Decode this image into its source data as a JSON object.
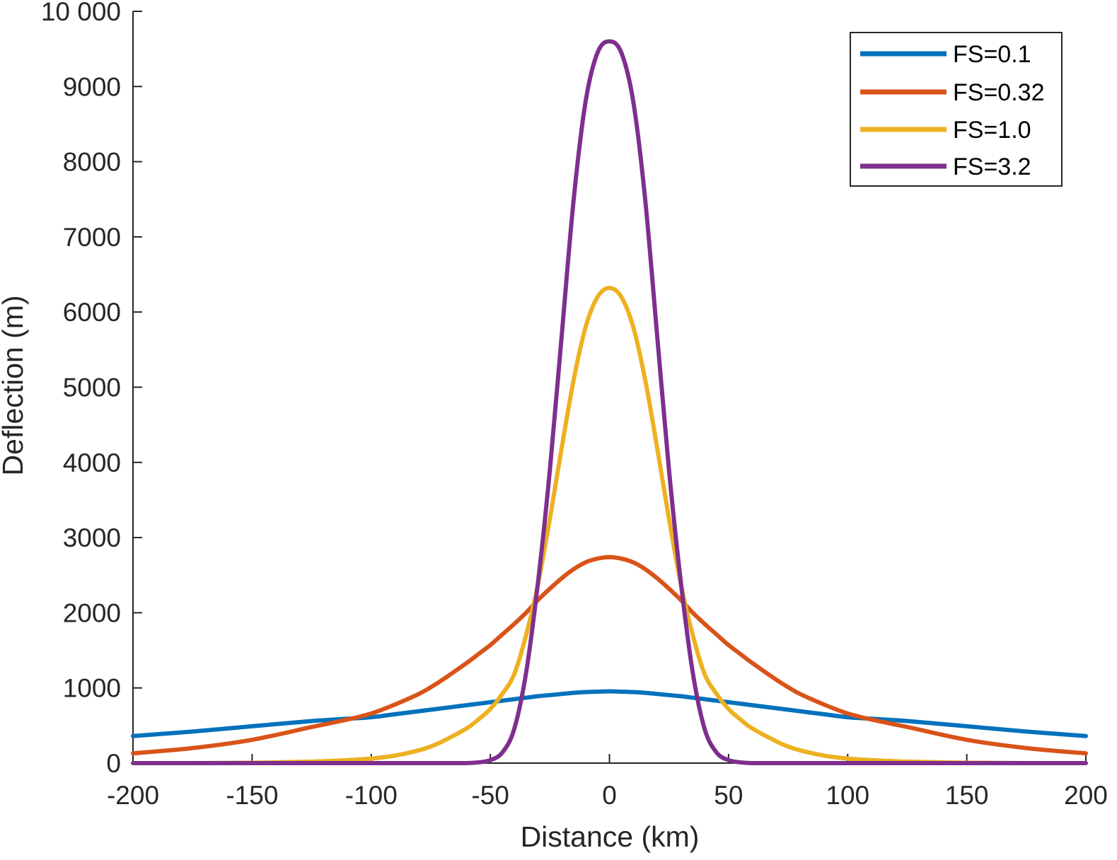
{
  "chart_data": {
    "type": "line",
    "title": "",
    "xlabel": "Distance (km)",
    "ylabel": "Deflection (m)",
    "xlim": [
      -200,
      200
    ],
    "ylim": [
      0,
      10000
    ],
    "grid": false,
    "legend_position": "top-right",
    "x_ticks": [
      -200,
      -150,
      -100,
      -50,
      0,
      50,
      100,
      150,
      200
    ],
    "x_tick_labels": [
      "-200",
      "-150",
      "-100",
      "-50",
      "0",
      "50",
      "100",
      "150",
      "200"
    ],
    "y_ticks": [
      0,
      1000,
      2000,
      3000,
      4000,
      5000,
      6000,
      7000,
      8000,
      9000,
      10000
    ],
    "y_tick_labels": [
      "0",
      "1000",
      "2000",
      "3000",
      "4000",
      "5000",
      "6000",
      "7000",
      "8000",
      "9000",
      "10 000"
    ],
    "x": [
      -200,
      -175,
      -150,
      -125,
      -110,
      -100,
      -90,
      -80,
      -75,
      -70,
      -60,
      -55,
      -50,
      -45,
      -40,
      -35,
      -30,
      -25,
      -20,
      -15,
      -10,
      -5,
      0,
      5,
      10,
      15,
      20,
      25,
      30,
      35,
      40,
      45,
      50,
      55,
      60,
      70,
      75,
      80,
      90,
      100,
      110,
      125,
      150,
      175,
      200
    ],
    "series": [
      {
        "name": "FS=0.1",
        "color": "#0072bd",
        "values": [
          360,
          420,
          490,
          560,
          590,
          610,
          650,
          690,
          710,
          730,
          770,
          790,
          810,
          830,
          850,
          870,
          890,
          905,
          920,
          935,
          945,
          950,
          955,
          950,
          945,
          935,
          920,
          905,
          890,
          870,
          850,
          830,
          810,
          790,
          770,
          730,
          710,
          690,
          650,
          610,
          590,
          560,
          490,
          420,
          360
        ]
      },
      {
        "name": "FS=0.32",
        "color": "#d95319",
        "values": [
          130,
          200,
          310,
          480,
          580,
          660,
          780,
          920,
          1010,
          1110,
          1330,
          1450,
          1570,
          1710,
          1850,
          2000,
          2170,
          2320,
          2460,
          2580,
          2670,
          2720,
          2740,
          2720,
          2670,
          2580,
          2460,
          2320,
          2170,
          2000,
          1850,
          1710,
          1570,
          1450,
          1330,
          1110,
          1010,
          920,
          780,
          660,
          580,
          480,
          310,
          200,
          130
        ]
      },
      {
        "name": "FS=1.0",
        "color": "#edb120",
        "values": [
          0,
          0,
          5,
          20,
          40,
          60,
          100,
          170,
          220,
          290,
          460,
          580,
          720,
          920,
          1180,
          1700,
          2380,
          3250,
          4200,
          5100,
          5800,
          6200,
          6320,
          6200,
          5800,
          5100,
          4200,
          3250,
          2380,
          1700,
          1180,
          920,
          720,
          580,
          460,
          290,
          220,
          170,
          100,
          60,
          40,
          20,
          5,
          0,
          0
        ]
      },
      {
        "name": "FS=3.2",
        "color": "#7e2f8e",
        "values": [
          0,
          0,
          0,
          0,
          0,
          0,
          0,
          0,
          0,
          0,
          0,
          10,
          40,
          140,
          450,
          1200,
          2400,
          3900,
          5700,
          7500,
          8800,
          9450,
          9600,
          9450,
          8800,
          7500,
          5700,
          3900,
          2400,
          1200,
          450,
          140,
          40,
          10,
          0,
          0,
          0,
          0,
          0,
          0,
          0,
          0,
          0,
          0,
          0
        ]
      }
    ]
  }
}
